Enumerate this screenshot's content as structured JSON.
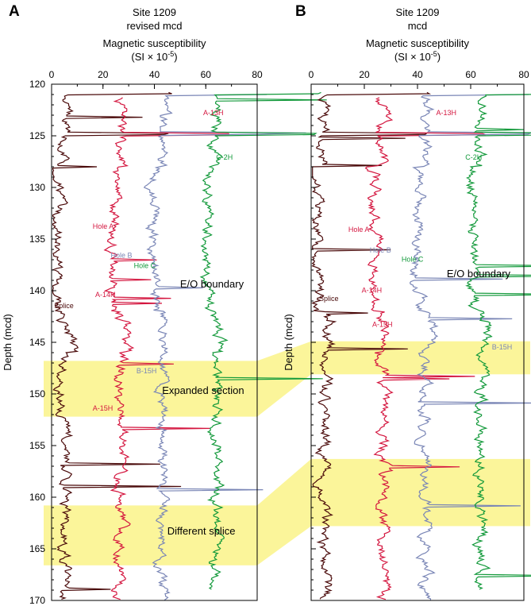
{
  "colors": {
    "splice": "#4a0a0a",
    "hole_a": "#d4163f",
    "hole_b": "#7a86b6",
    "hole_c": "#12993a",
    "highlight": "#fbf59a"
  },
  "y_axis_label": "Depth (mcd)",
  "chart_data": [
    {
      "type": "line",
      "panel_letter": "A",
      "title": "Site 1209",
      "subtitle": "revised mcd",
      "xlabel": "Magnetic susceptibility",
      "xunit": "(SI × 10",
      "xunit_exp": "-5",
      "xunit_close": ")",
      "xlim": [
        0,
        80
      ],
      "ylim": [
        170,
        120
      ],
      "x_ticks": [
        "0",
        "20",
        "40",
        "60",
        "80"
      ],
      "y_ticks": [
        "120",
        "125",
        "130",
        "135",
        "140",
        "145",
        "150",
        "155",
        "160",
        "165",
        "170"
      ],
      "series": [
        {
          "name": "Splice",
          "key": "splice",
          "offset": 0,
          "mean": 5,
          "top": 120.8,
          "bottom": 170
        },
        {
          "name": "Hole A",
          "key": "hole_a",
          "offset": 12,
          "mean": 15,
          "top": 121.3,
          "bottom": 170
        },
        {
          "name": "Hole B",
          "key": "hole_b",
          "offset": 20,
          "mean": 23,
          "top": 121.0,
          "bottom": 170
        },
        {
          "name": "Hole C",
          "key": "hole_c",
          "offset": 30,
          "mean": 34,
          "top": 120.8,
          "bottom": 169
        }
      ],
      "highlight_bands": [
        {
          "label": "Expanded section",
          "top": 146.8,
          "bottom": 152.2
        },
        {
          "label": "Different splice",
          "top": 160.8,
          "bottom": 166.6
        }
      ],
      "annotations": [
        {
          "text": "A-13H",
          "x": 59,
          "y": 123.0,
          "color": "hole_a"
        },
        {
          "text": "C-2H",
          "x": 64,
          "y": 127.3,
          "color": "hole_c"
        },
        {
          "text": "Hole A",
          "x": 16,
          "y": 134.0,
          "color": "hole_a"
        },
        {
          "text": "Hole B",
          "x": 23,
          "y": 136.8,
          "color": "hole_b"
        },
        {
          "text": "Hole C",
          "x": 32,
          "y": 137.8,
          "color": "hole_c"
        },
        {
          "text": "E/O boundary",
          "x": 50,
          "y": 139.7,
          "color": "splice_text",
          "large": true
        },
        {
          "text": "A-14H",
          "x": 17,
          "y": 140.6,
          "color": "hole_a"
        },
        {
          "text": "Splice",
          "x": 1,
          "y": 141.7,
          "color": "splice"
        },
        {
          "text": "B-15H",
          "x": 33,
          "y": 148.0,
          "color": "hole_b"
        },
        {
          "text": "Expanded section",
          "x": 43,
          "y": 150.0,
          "color": "splice_text",
          "large": true
        },
        {
          "text": "A-15H",
          "x": 16,
          "y": 151.6,
          "color": "hole_a"
        },
        {
          "text": "Different splice",
          "x": 45,
          "y": 163.6,
          "color": "splice_text",
          "large": true
        }
      ]
    },
    {
      "type": "line",
      "panel_letter": "B",
      "title": "Site 1209",
      "subtitle": "mcd",
      "xlabel": "Magnetic susceptibility",
      "xunit": "(SI × 10",
      "xunit_exp": "-5",
      "xunit_close": ")",
      "xlim": [
        0,
        80
      ],
      "ylim": [
        170,
        120
      ],
      "x_ticks": [
        "0",
        "20",
        "40",
        "60",
        "80"
      ],
      "y_ticks": [],
      "series": [
        {
          "name": "Splice",
          "key": "splice",
          "offset": 0,
          "mean": 5,
          "top": 120.8,
          "bottom": 170
        },
        {
          "name": "Hole A",
          "key": "hole_a",
          "offset": 12,
          "mean": 15,
          "top": 121.3,
          "bottom": 170
        },
        {
          "name": "Hole B",
          "key": "hole_b",
          "offset": 20,
          "mean": 23,
          "top": 121.0,
          "bottom": 170
        },
        {
          "name": "Hole C",
          "key": "hole_c",
          "offset": 30,
          "mean": 34,
          "top": 120.8,
          "bottom": 169
        }
      ],
      "highlight_bands": [
        {
          "label": "",
          "top": 144.9,
          "bottom": 148.1
        },
        {
          "label": "",
          "top": 156.3,
          "bottom": 162.8
        }
      ],
      "annotations": [
        {
          "text": "A-13H",
          "x": 47,
          "y": 123.0,
          "color": "hole_a"
        },
        {
          "text": "C-2H",
          "x": 58,
          "y": 127.3,
          "color": "hole_c"
        },
        {
          "text": "Hole A",
          "x": 14,
          "y": 134.3,
          "color": "hole_a"
        },
        {
          "text": "Hole B",
          "x": 22,
          "y": 136.3,
          "color": "hole_b"
        },
        {
          "text": "Hole C",
          "x": 34,
          "y": 137.2,
          "color": "hole_c"
        },
        {
          "text": "E/O boundary",
          "x": 51,
          "y": 138.7,
          "color": "splice_text",
          "large": true
        },
        {
          "text": "A-14H",
          "x": 19,
          "y": 140.2,
          "color": "hole_a"
        },
        {
          "text": "Splice",
          "x": 3,
          "y": 141.0,
          "color": "splice"
        },
        {
          "text": "A-15H",
          "x": 23,
          "y": 143.5,
          "color": "hole_a"
        },
        {
          "text": "B-15H",
          "x": 68,
          "y": 145.7,
          "color": "hole_b"
        }
      ]
    }
  ]
}
